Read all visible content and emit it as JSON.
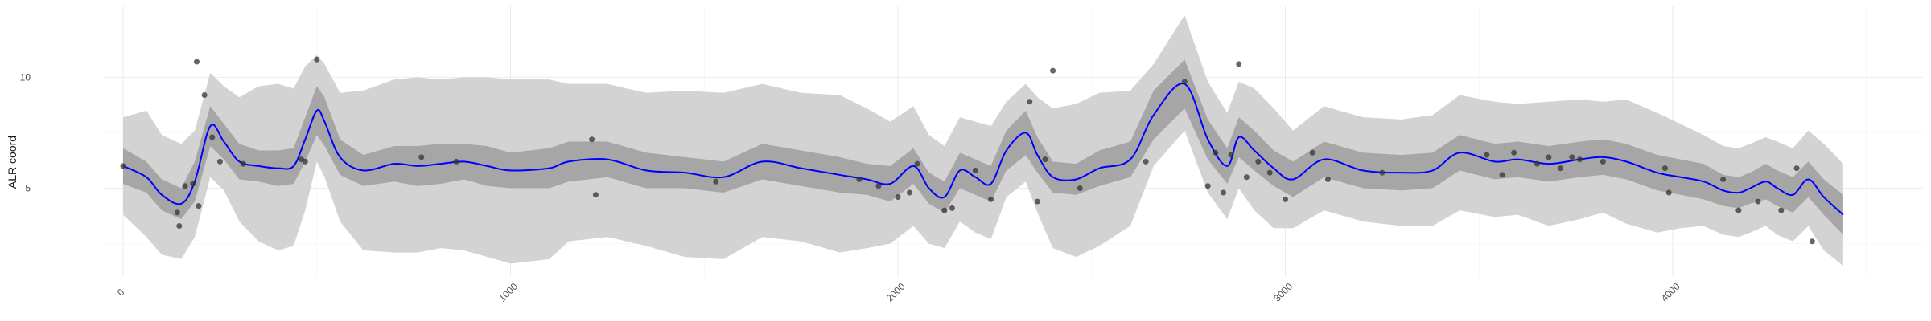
{
  "chart_data": {
    "type": "line",
    "title": "",
    "xlabel": "",
    "ylabel": "ALR coord",
    "xlim": [
      -100,
      4600
    ],
    "ylim": [
      1.0,
      13.2
    ],
    "x_ticks": [
      0,
      1000,
      2000,
      3000,
      4000
    ],
    "y_ticks": [
      5,
      10
    ],
    "x_tick_labels": [
      "0",
      "1000",
      "2000",
      "3000",
      "4000"
    ],
    "y_tick_labels": [
      "5",
      "10"
    ],
    "x_tick_label_rotation_deg": -45,
    "grid": true,
    "legend": "none",
    "series": [
      {
        "kind": "line",
        "x": [
          0,
          60,
          100,
          150,
          185,
          225,
          260,
          300,
          350,
          400,
          440,
          470,
          500,
          520,
          560,
          620,
          700,
          760,
          820,
          880,
          940,
          1000,
          1100,
          1150,
          1250,
          1350,
          1450,
          1550,
          1650,
          1750,
          1850,
          1920,
          1980,
          2040,
          2080,
          2120,
          2160,
          2200,
          2240,
          2280,
          2330,
          2360,
          2400,
          2460,
          2520,
          2600,
          2660,
          2740,
          2800,
          2850,
          2880,
          2920,
          2970,
          3020,
          3100,
          3200,
          3300,
          3380,
          3450,
          3540,
          3600,
          3680,
          3760,
          3820,
          3880,
          3960,
          4020,
          4080,
          4130,
          4170,
          4200,
          4240,
          4270,
          4310,
          4350,
          4390,
          4440
        ],
        "y": [
          6.0,
          5.5,
          4.7,
          4.3,
          5.3,
          7.8,
          7.1,
          6.2,
          6.0,
          5.9,
          6.0,
          7.2,
          8.5,
          8.0,
          6.4,
          5.8,
          6.1,
          6.0,
          6.1,
          6.2,
          6.0,
          5.8,
          5.9,
          6.2,
          6.3,
          5.8,
          5.7,
          5.5,
          6.2,
          5.9,
          5.6,
          5.4,
          5.2,
          6.0,
          5.0,
          4.6,
          5.8,
          5.5,
          5.2,
          6.7,
          7.5,
          6.5,
          5.5,
          5.4,
          5.9,
          6.3,
          8.3,
          9.7,
          7.2,
          6.0,
          7.3,
          6.7,
          5.9,
          5.4,
          6.3,
          5.8,
          5.7,
          5.8,
          6.6,
          6.2,
          6.3,
          6.1,
          6.3,
          6.4,
          6.2,
          5.7,
          5.5,
          5.3,
          4.9,
          4.8,
          5.0,
          5.3,
          5.0,
          4.7,
          5.4,
          4.6,
          3.8
        ],
        "color": "#0000ff"
      },
      {
        "kind": "inner-band",
        "x": [
          0,
          60,
          100,
          150,
          185,
          225,
          260,
          300,
          350,
          400,
          440,
          470,
          500,
          520,
          560,
          620,
          700,
          760,
          820,
          880,
          940,
          1000,
          1100,
          1150,
          1250,
          1350,
          1450,
          1550,
          1650,
          1750,
          1850,
          1920,
          1980,
          2040,
          2080,
          2120,
          2160,
          2200,
          2240,
          2280,
          2330,
          2360,
          2400,
          2460,
          2520,
          2600,
          2660,
          2740,
          2800,
          2850,
          2880,
          2920,
          2970,
          3020,
          3100,
          3200,
          3300,
          3380,
          3450,
          3540,
          3600,
          3680,
          3760,
          3820,
          3880,
          3960,
          4020,
          4080,
          4130,
          4170,
          4200,
          4240,
          4270,
          4310,
          4350,
          4390,
          4440
        ],
        "lower": [
          5.2,
          4.8,
          4.0,
          3.6,
          4.4,
          6.9,
          6.3,
          5.4,
          5.3,
          5.1,
          5.2,
          6.2,
          7.4,
          6.9,
          5.6,
          5.1,
          5.3,
          5.1,
          5.2,
          5.4,
          5.1,
          5.0,
          5.0,
          5.3,
          5.5,
          5.0,
          5.0,
          4.8,
          5.4,
          5.1,
          4.8,
          4.7,
          4.4,
          5.2,
          4.3,
          3.9,
          5.0,
          4.7,
          4.4,
          5.8,
          6.5,
          5.7,
          4.8,
          4.7,
          5.1,
          5.5,
          7.2,
          8.6,
          6.3,
          5.2,
          6.4,
          5.8,
          5.1,
          4.6,
          5.5,
          5.0,
          4.9,
          5.0,
          5.8,
          5.4,
          5.5,
          5.3,
          5.5,
          5.6,
          5.4,
          4.9,
          4.7,
          4.5,
          4.2,
          4.1,
          4.3,
          4.5,
          4.2,
          3.9,
          4.6,
          3.8,
          2.9
        ],
        "upper": [
          6.8,
          6.2,
          5.4,
          5.0,
          6.2,
          8.7,
          7.9,
          7.0,
          6.7,
          6.7,
          6.8,
          8.2,
          9.6,
          9.1,
          7.2,
          6.5,
          6.9,
          6.9,
          7.0,
          7.0,
          6.9,
          6.6,
          6.8,
          7.1,
          7.1,
          6.6,
          6.4,
          6.2,
          7.0,
          6.7,
          6.4,
          6.1,
          6.0,
          6.8,
          5.7,
          5.3,
          6.6,
          6.3,
          6.0,
          7.6,
          8.5,
          7.3,
          6.2,
          6.1,
          6.7,
          7.1,
          9.4,
          10.8,
          8.1,
          6.8,
          8.2,
          7.6,
          6.7,
          6.2,
          7.1,
          6.6,
          6.5,
          6.6,
          7.4,
          7.0,
          7.1,
          6.9,
          7.1,
          7.2,
          7.0,
          6.5,
          6.3,
          6.1,
          5.6,
          5.5,
          5.7,
          6.1,
          5.8,
          5.5,
          6.2,
          5.4,
          4.7
        ],
        "color": "#a6a6a6"
      },
      {
        "kind": "outer-band",
        "x": [
          0,
          60,
          100,
          150,
          185,
          225,
          260,
          300,
          350,
          400,
          440,
          470,
          500,
          520,
          560,
          620,
          700,
          760,
          820,
          880,
          940,
          1000,
          1100,
          1150,
          1250,
          1350,
          1450,
          1550,
          1650,
          1750,
          1850,
          1920,
          1980,
          2040,
          2080,
          2120,
          2160,
          2200,
          2240,
          2280,
          2330,
          2360,
          2400,
          2460,
          2520,
          2600,
          2660,
          2740,
          2800,
          2850,
          2880,
          2920,
          2970,
          3020,
          3100,
          3200,
          3300,
          3380,
          3450,
          3540,
          3600,
          3680,
          3760,
          3820,
          3880,
          3960,
          4020,
          4080,
          4130,
          4170,
          4200,
          4240,
          4270,
          4310,
          4350,
          4390,
          4440
        ],
        "lower": [
          3.8,
          2.8,
          2.0,
          1.8,
          2.8,
          5.5,
          4.9,
          3.5,
          2.6,
          2.2,
          2.4,
          4.0,
          6.2,
          5.5,
          3.5,
          2.2,
          2.1,
          2.1,
          2.3,
          2.2,
          1.9,
          1.6,
          1.8,
          2.6,
          2.8,
          2.4,
          1.9,
          1.8,
          2.8,
          2.6,
          2.1,
          2.3,
          2.5,
          3.3,
          2.5,
          2.3,
          3.5,
          3.0,
          2.7,
          4.6,
          5.3,
          3.9,
          2.3,
          1.9,
          2.4,
          3.3,
          6.0,
          7.6,
          4.8,
          3.6,
          5.0,
          4.0,
          3.2,
          3.2,
          4.0,
          3.5,
          3.3,
          3.3,
          4.0,
          3.7,
          3.8,
          3.3,
          3.6,
          3.9,
          3.4,
          3.0,
          3.2,
          3.3,
          2.9,
          2.8,
          3.0,
          3.3,
          2.9,
          2.6,
          3.3,
          2.2,
          1.5
        ],
        "upper": [
          8.2,
          8.5,
          7.4,
          7.0,
          7.6,
          10.2,
          9.6,
          9.1,
          9.6,
          9.7,
          9.5,
          10.5,
          11.0,
          10.6,
          9.3,
          9.4,
          9.9,
          10.0,
          9.9,
          10.0,
          10.0,
          9.9,
          9.9,
          9.7,
          9.7,
          9.3,
          9.4,
          9.3,
          9.7,
          9.3,
          9.2,
          8.6,
          8.0,
          8.7,
          7.4,
          6.9,
          8.2,
          8.0,
          7.8,
          8.9,
          9.7,
          9.1,
          8.6,
          8.8,
          9.3,
          9.4,
          10.6,
          12.8,
          9.8,
          8.4,
          9.8,
          9.5,
          8.6,
          7.6,
          8.7,
          8.2,
          8.1,
          8.3,
          9.2,
          8.9,
          8.8,
          8.9,
          9.0,
          8.9,
          9.0,
          8.4,
          7.9,
          7.4,
          6.9,
          6.8,
          7.0,
          7.3,
          7.1,
          6.8,
          7.6,
          7.0,
          6.1
        ],
        "color": "#d3d3d3"
      },
      {
        "kind": "points",
        "x": [
          0,
          140,
          145,
          160,
          180,
          190,
          195,
          210,
          230,
          250,
          310,
          460,
          470,
          500,
          770,
          860,
          1210,
          1220,
          1530,
          1900,
          1950,
          2000,
          2030,
          2050,
          2120,
          2140,
          2200,
          2240,
          2340,
          2360,
          2380,
          2400,
          2470,
          2640,
          2740,
          2800,
          2820,
          2840,
          2860,
          2880,
          2900,
          2930,
          2960,
          3000,
          3070,
          3110,
          3250,
          3520,
          3560,
          3590,
          3650,
          3680,
          3710,
          3740,
          3760,
          3820,
          3980,
          3990,
          4130,
          4170,
          4220,
          4280,
          4320,
          4360
        ],
        "y": [
          6.0,
          3.9,
          3.3,
          5.1,
          5.2,
          10.7,
          4.2,
          9.2,
          7.3,
          6.2,
          6.1,
          6.3,
          6.2,
          10.8,
          6.4,
          6.2,
          7.2,
          4.7,
          5.3,
          5.4,
          5.1,
          4.6,
          4.8,
          6.1,
          4.0,
          4.1,
          5.8,
          4.5,
          8.9,
          4.4,
          6.3,
          10.3,
          5.0,
          6.2,
          9.8,
          5.1,
          6.6,
          4.8,
          6.5,
          10.6,
          5.5,
          6.2,
          5.7,
          4.5,
          6.6,
          5.4,
          5.7,
          6.5,
          5.6,
          6.6,
          6.1,
          6.4,
          5.9,
          6.4,
          6.3,
          6.2,
          5.9,
          4.8,
          5.4,
          4.0,
          4.4,
          4.0,
          5.9,
          2.6
        ],
        "color": "#333333"
      }
    ]
  }
}
